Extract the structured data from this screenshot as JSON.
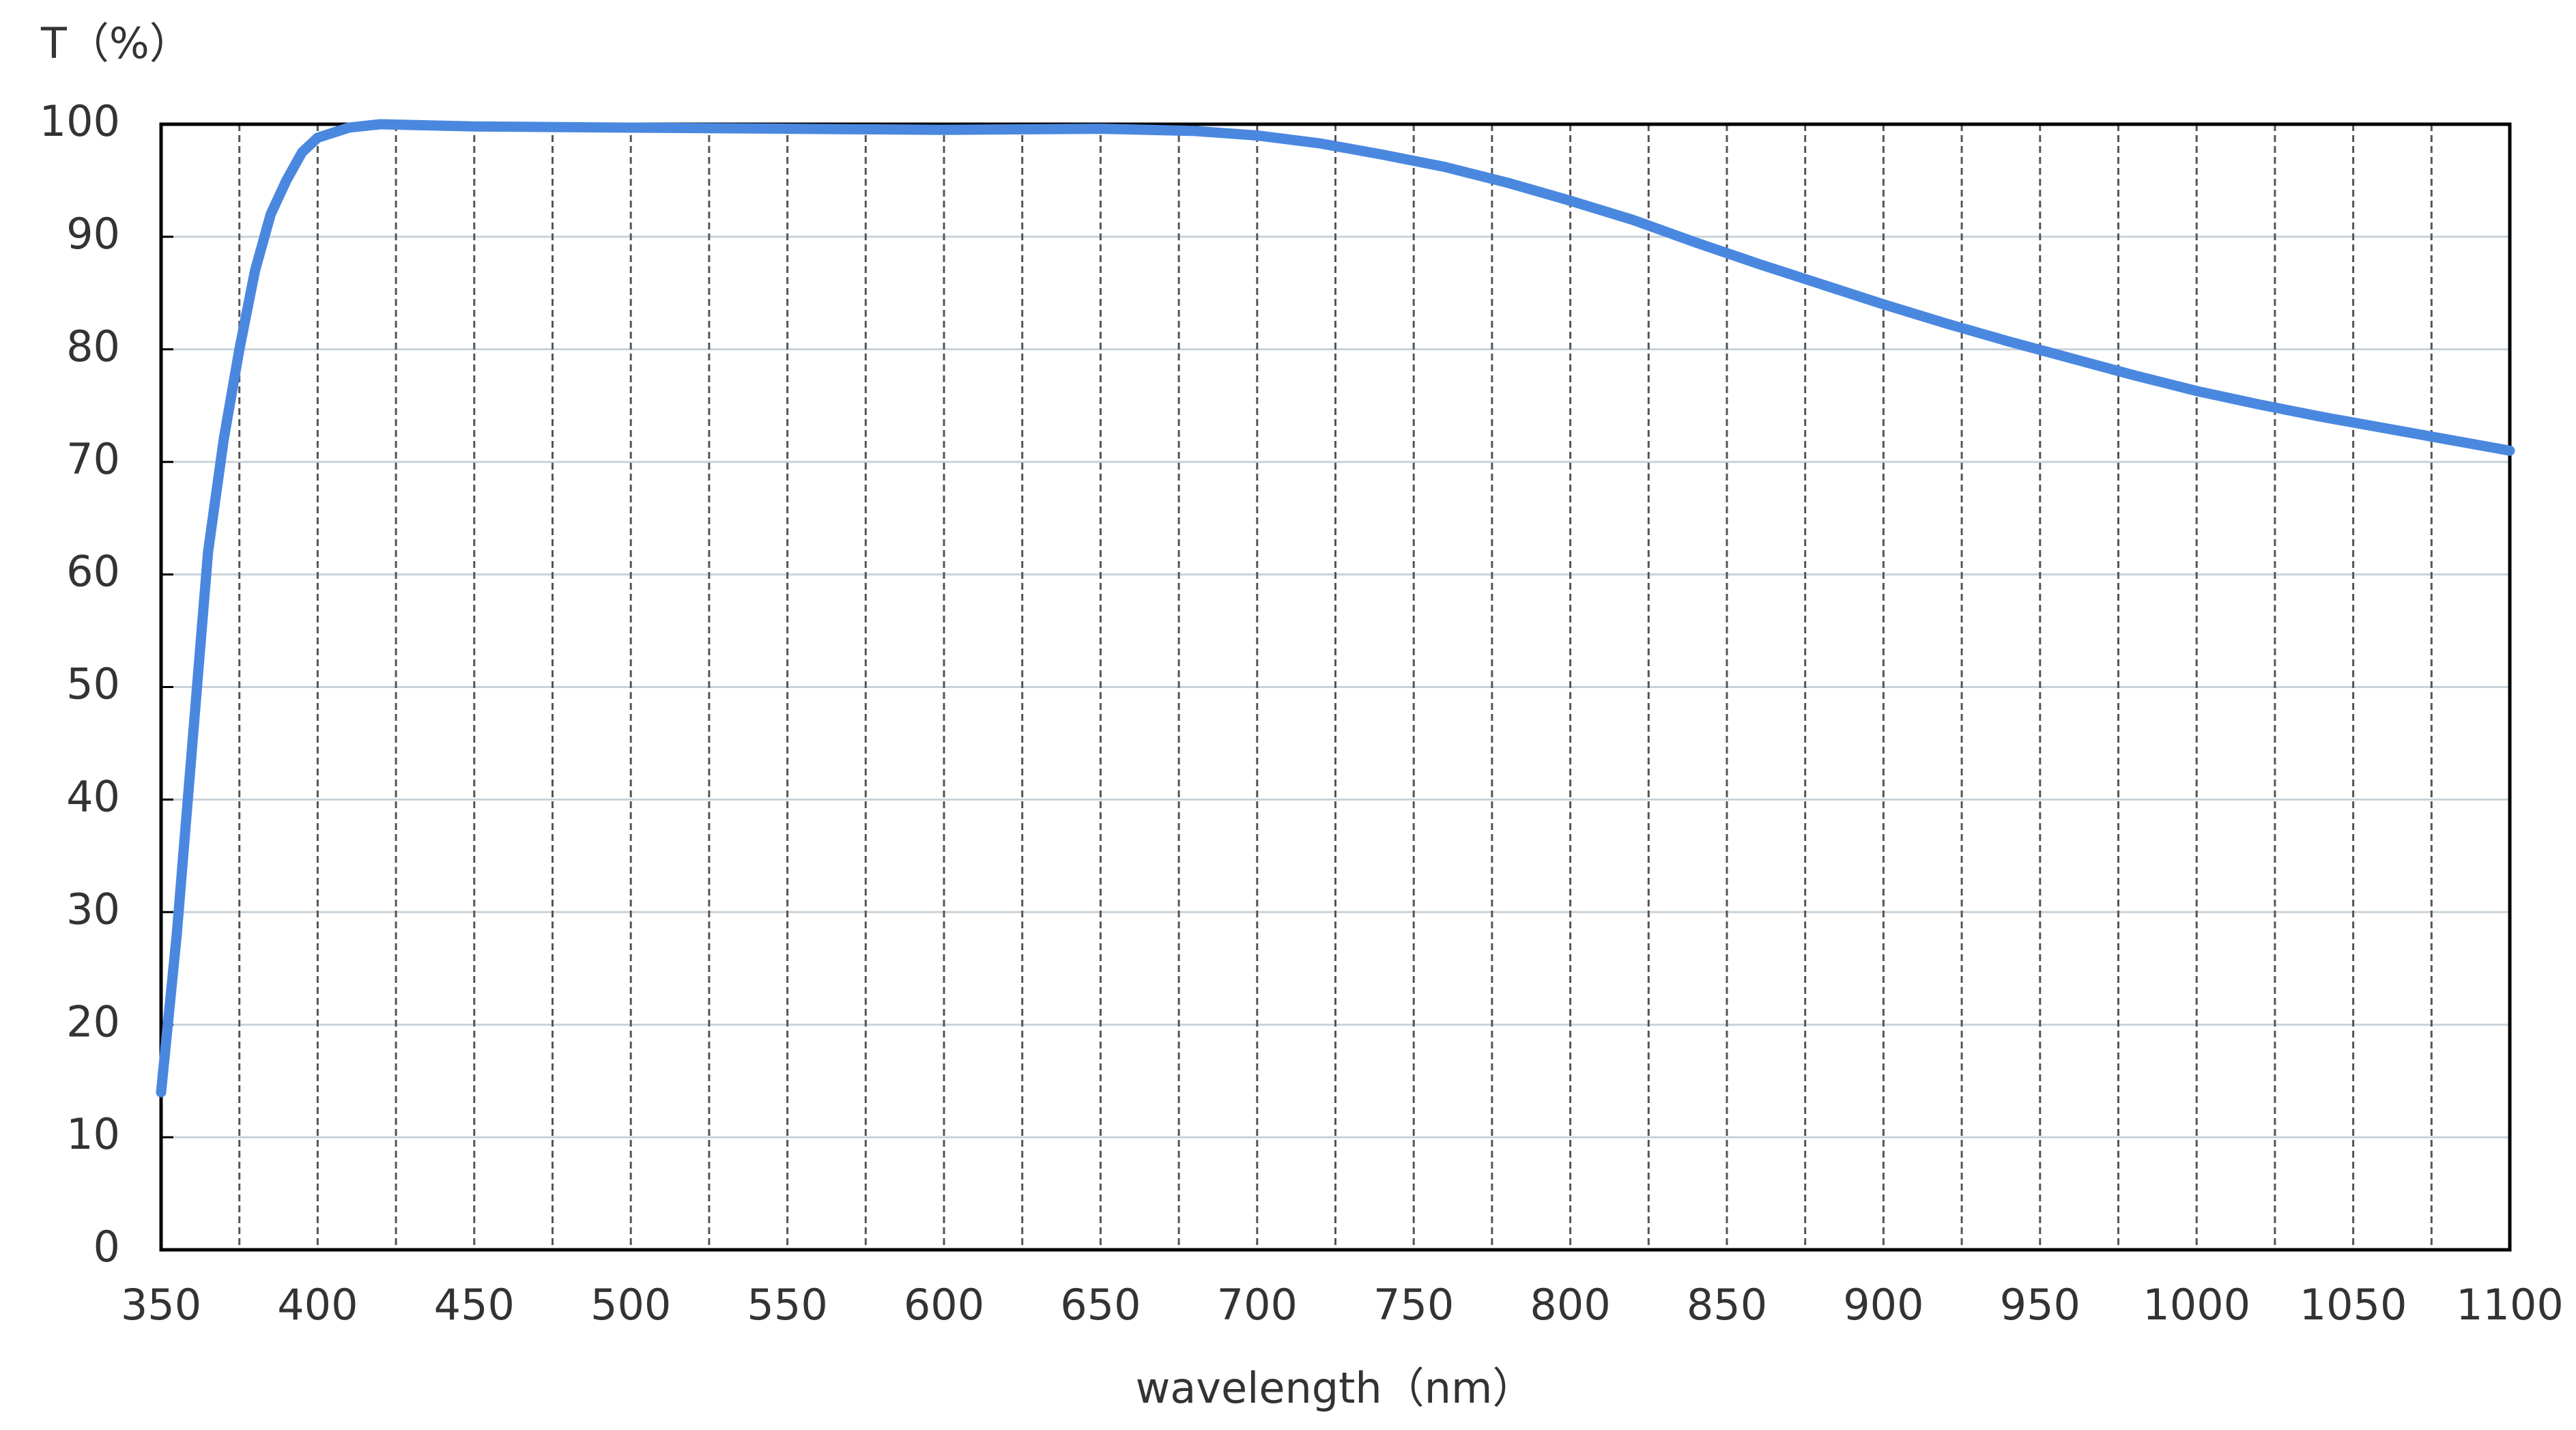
{
  "chart_data": {
    "type": "line",
    "y_label": "T（%）",
    "x_label": "wavelength（nm）",
    "x": [
      350,
      355,
      360,
      365,
      370,
      375,
      380,
      385,
      390,
      395,
      400,
      410,
      420,
      450,
      500,
      550,
      600,
      650,
      680,
      700,
      720,
      740,
      760,
      780,
      800,
      820,
      840,
      860,
      880,
      900,
      920,
      940,
      960,
      980,
      1000,
      1020,
      1040,
      1060,
      1080,
      1100
    ],
    "series": [
      {
        "color": "#4a88e0",
        "values": [
          14,
          28,
          45,
          62,
          72,
          80,
          87,
          92,
          95,
          97.5,
          98.8,
          99.7,
          100,
          99.8,
          99.7,
          99.6,
          99.5,
          99.6,
          99.4,
          99,
          98.3,
          97.3,
          96.2,
          94.8,
          93.2,
          91.5,
          89.5,
          87.6,
          85.8,
          84,
          82.3,
          80.7,
          79.2,
          77.7,
          76.3,
          75.1,
          74,
          73,
          72,
          71
        ]
      }
    ],
    "xlim": [
      350,
      1100
    ],
    "ylim": [
      0,
      100
    ],
    "xticks": [
      350,
      400,
      450,
      500,
      550,
      600,
      650,
      700,
      750,
      800,
      850,
      900,
      950,
      1000,
      1050,
      1100
    ],
    "yticks": [
      0,
      10,
      20,
      30,
      40,
      50,
      60,
      70,
      80,
      90,
      100
    ],
    "grid": true
  }
}
